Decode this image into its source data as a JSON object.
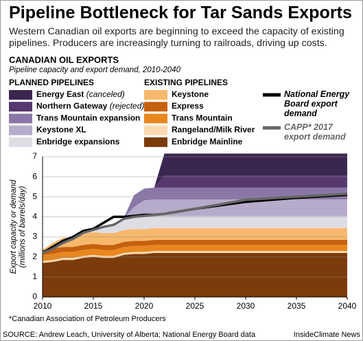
{
  "chart_data": {
    "type": "area",
    "title": "Pipeline Bottleneck for Tar Sands Exports",
    "subtitle": "Western Canadian oil exports are beginning to exceed the capacity of existing pipelines. Producers are increasingly turning to railroads, driving up costs.",
    "chart_title": "CANADIAN OIL EXPORTS",
    "chart_subtitle": "Pipeline capacity and export demand, 2010-2040",
    "legend_groups": {
      "planned": "PLANNED PIPELINES",
      "existing": "EXISTING PIPELINES"
    },
    "y_label": [
      "Export capacity or demand",
      "(millions of barrels/day)"
    ],
    "x": [
      2010,
      2011,
      2012,
      2013,
      2014,
      2015,
      2016,
      2017,
      2018,
      2019,
      2020,
      2021,
      2022,
      2025,
      2030,
      2035,
      2040
    ],
    "series": [
      {
        "name": "Energy East",
        "note": "(canceled)",
        "group": "planned",
        "type": "area",
        "color": "#3b2650",
        "values": [
          0,
          0,
          0,
          0,
          0,
          0,
          0,
          0,
          0,
          0,
          0,
          0,
          1.1,
          1.1,
          1.1,
          1.1,
          1.1
        ]
      },
      {
        "name": "Northern Gateway",
        "note": "(rejected)",
        "group": "planned",
        "type": "area",
        "color": "#56386f",
        "values": [
          0,
          0,
          0,
          0,
          0,
          0,
          0,
          0,
          0,
          0,
          0,
          0,
          0.6,
          0.6,
          0.6,
          0.6,
          0.6
        ]
      },
      {
        "name": "Trans Mountain expansion",
        "group": "planned",
        "type": "area",
        "color": "#8a77a8",
        "values": [
          0,
          0,
          0,
          0,
          0,
          0,
          0,
          0,
          0,
          0.59,
          0.59,
          0.59,
          0.59,
          0.59,
          0.59,
          0.59,
          0.59
        ]
      },
      {
        "name": "Keystone XL",
        "group": "planned",
        "type": "area",
        "color": "#b6abca",
        "values": [
          0,
          0,
          0,
          0,
          0,
          0,
          0,
          0,
          0,
          0.5,
          0.83,
          0.83,
          0.83,
          0.83,
          0.83,
          0.83,
          0.83
        ]
      },
      {
        "name": "Enbridge expansions",
        "group": "planned",
        "type": "area",
        "color": "#dfdde4",
        "values": [
          0,
          0,
          0,
          0,
          0.1,
          0.2,
          0.3,
          0.5,
          0.6,
          0.6,
          0.6,
          0.6,
          0.6,
          0.6,
          0.6,
          0.6,
          0.6
        ]
      },
      {
        "name": "Keystone",
        "group": "existing",
        "type": "area",
        "color": "#f7b86c",
        "values": [
          0,
          0.3,
          0.45,
          0.5,
          0.55,
          0.59,
          0.59,
          0.59,
          0.59,
          0.59,
          0.59,
          0.59,
          0.59,
          0.59,
          0.59,
          0.59,
          0.59
        ]
      },
      {
        "name": "Express",
        "group": "existing",
        "type": "area",
        "color": "#c5600f",
        "values": [
          0.25,
          0.25,
          0.25,
          0.25,
          0.25,
          0.25,
          0.25,
          0.25,
          0.25,
          0.25,
          0.25,
          0.25,
          0.25,
          0.25,
          0.25,
          0.25,
          0.25
        ]
      },
      {
        "name": "Trans Mountain",
        "group": "existing",
        "type": "area",
        "color": "#e8871e",
        "values": [
          0.3,
          0.3,
          0.3,
          0.3,
          0.3,
          0.3,
          0.3,
          0.3,
          0.3,
          0.3,
          0.3,
          0.3,
          0.3,
          0.3,
          0.3,
          0.3,
          0.3
        ]
      },
      {
        "name": "Rangeland/Milk River",
        "group": "existing",
        "type": "area",
        "color": "#fbd9b0",
        "values": [
          0.1,
          0.1,
          0.1,
          0.1,
          0.1,
          0.1,
          0.1,
          0.1,
          0.1,
          0.1,
          0.1,
          0.1,
          0.1,
          0.1,
          0.1,
          0.1,
          0.1
        ]
      },
      {
        "name": "Enbridge Mainline",
        "group": "existing",
        "type": "area",
        "color": "#7b3b0b",
        "values": [
          1.7,
          1.75,
          1.85,
          1.85,
          1.95,
          2.0,
          1.95,
          1.95,
          2.1,
          2.15,
          2.15,
          2.2,
          2.2,
          2.2,
          2.2,
          2.2,
          2.2
        ]
      },
      {
        "name": "National Energy Board export demand",
        "type": "line",
        "color": "#000000",
        "values": [
          2.2,
          2.5,
          2.8,
          3.0,
          3.3,
          3.4,
          3.7,
          4.0,
          4.0,
          4.05,
          4.1,
          4.1,
          4.15,
          4.4,
          4.75,
          4.95,
          5.1
        ]
      },
      {
        "name": "CAPP* 2017 export demand",
        "type": "line",
        "color": "#666666",
        "values": [
          2.2,
          2.4,
          2.7,
          2.9,
          3.2,
          3.35,
          3.5,
          3.6,
          3.9,
          4.0,
          4.05,
          4.1,
          4.15,
          4.4,
          4.85,
          5.0,
          5.15
        ]
      }
    ],
    "xlim": [
      2010,
      2040
    ],
    "xticks": [
      2010,
      2015,
      2020,
      2025,
      2030,
      2035,
      2040
    ],
    "ylim": [
      0,
      7
    ],
    "yticks": [
      0,
      1,
      2,
      3,
      4,
      5,
      6,
      7
    ],
    "grid": true,
    "footnote": "*Canadian Association of Petroleum Producers",
    "source": "SOURCE: Andrew Leach, University of Alberta; National Energy Board data",
    "credit": "InsideClimate News"
  }
}
